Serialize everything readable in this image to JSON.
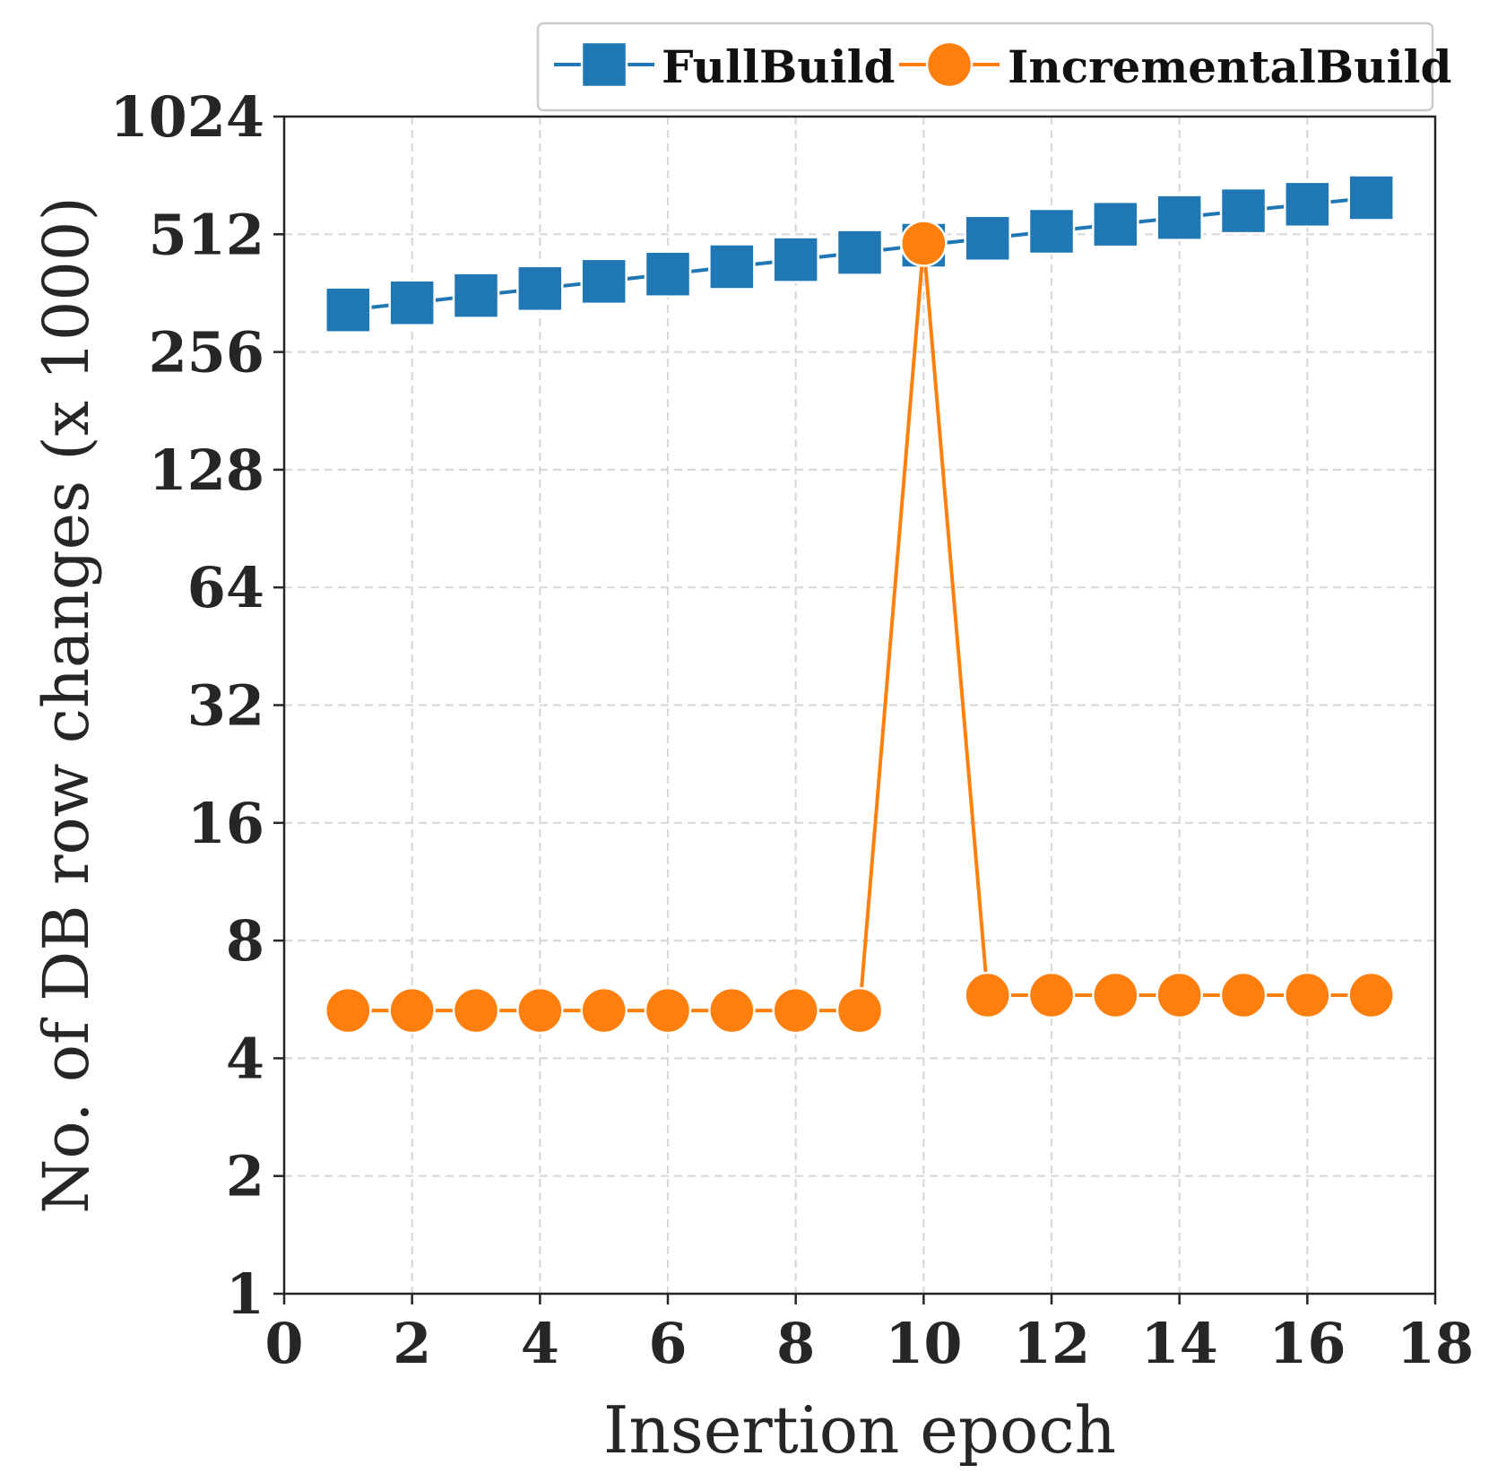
{
  "chart_data": {
    "type": "line",
    "xlabel": "Insertion epoch",
    "ylabel": "No. of DB row changes (x 1000)",
    "xlim": [
      0,
      18
    ],
    "ylim": [
      1,
      1024
    ],
    "yscale": "log2",
    "x_ticks": [
      0,
      2,
      4,
      6,
      8,
      10,
      12,
      14,
      16,
      18
    ],
    "y_ticks": [
      1,
      2,
      4,
      8,
      16,
      32,
      64,
      128,
      256,
      512,
      1024
    ],
    "grid": true,
    "legend_position": "top-right, above plot",
    "x": [
      1,
      2,
      3,
      4,
      5,
      6,
      7,
      8,
      9,
      10,
      11,
      12,
      13,
      14,
      15,
      16,
      17
    ],
    "series": [
      {
        "name": "FullBuild",
        "color": "#1f77b4",
        "marker": "square",
        "values": [
          328,
          342,
          357,
          372,
          388,
          405,
          423,
          441,
          460,
          480,
          500,
          521,
          543,
          565,
          588,
          611,
          635
        ]
      },
      {
        "name": "IncrementalBuild",
        "color": "#ff7f0e",
        "marker": "circle",
        "values": [
          5.3,
          5.3,
          5.3,
          5.3,
          5.3,
          5.3,
          5.3,
          5.3,
          5.3,
          485,
          5.8,
          5.8,
          5.8,
          5.8,
          5.8,
          5.8,
          5.8
        ]
      }
    ]
  }
}
